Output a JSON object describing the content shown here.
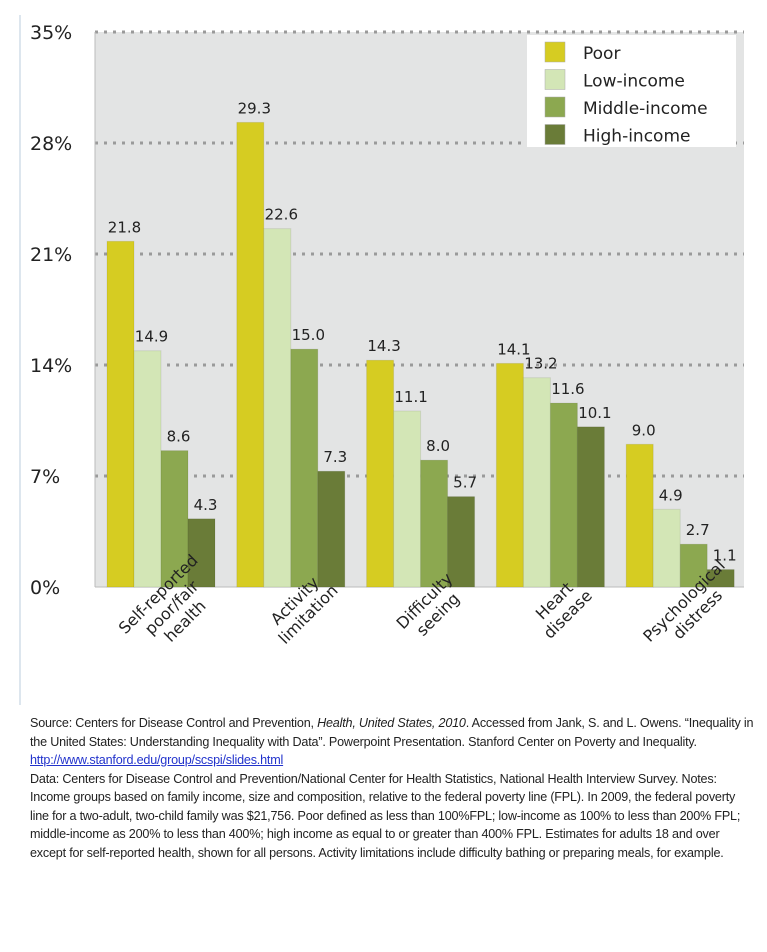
{
  "chart_data": {
    "type": "bar",
    "categories": [
      [
        "Self-reported",
        "poor/fair",
        "health"
      ],
      [
        "Activity",
        "limitation"
      ],
      [
        "Difficulty",
        "seeing"
      ],
      [
        "Heart",
        "disease"
      ],
      [
        "Psychological",
        "distress"
      ]
    ],
    "series": [
      {
        "name": "Poor",
        "color": "#d6cc22",
        "values": [
          21.8,
          29.3,
          14.3,
          14.1,
          9.0
        ],
        "labels": [
          "21.8",
          "29.3",
          "14.3",
          "14.1",
          "9.0"
        ]
      },
      {
        "name": "Low-income",
        "color": "#d3e6b6",
        "values": [
          14.9,
          22.6,
          11.1,
          13.2,
          4.9
        ],
        "labels": [
          "14.9",
          "22.6",
          "11.1",
          "13.2",
          "4.9"
        ]
      },
      {
        "name": "Middle-income",
        "color": "#8ca850",
        "values": [
          8.6,
          15.0,
          8.0,
          11.6,
          2.7
        ],
        "labels": [
          "8.6",
          "15.0",
          "8.0",
          "11.6",
          "2.7"
        ]
      },
      {
        "name": "High-income",
        "color": "#6a7c38",
        "values": [
          4.3,
          7.3,
          5.7,
          10.1,
          1.1
        ],
        "labels": [
          "4.3",
          "7.3",
          "5.7",
          "10.1",
          "1.1"
        ]
      }
    ],
    "yticks": [
      "0%",
      "7%",
      "14%",
      "21%",
      "28%",
      "35%"
    ],
    "ylim": [
      0,
      35
    ],
    "grid": true,
    "legend": "top-right",
    "plot_background": "#e3e4e4"
  },
  "notes": {
    "source_prefix": "Source: Centers for Disease Control and Prevention, ",
    "source_italic": "Health, United States, 2010",
    "source_rest": ".  Accessed from Jank, S. and L. Owens. “Inequality in the United States: Understanding Inequality with Data”. Powerpoint Presentation. Stanford Center on Poverty and Inequality.",
    "link": "http://www.stanford.edu/group/scspi/slides.html",
    "data_note": "Data: Centers for Disease Control and Prevention/National Center for Health Statistics, National Health Interview Survey. Notes: Income groups based on family income, size and composition, relative to the federal poverty line (FPL). In 2009, the federal poverty line for a two-adult, two-child family was $21,756. Poor defined as less than 100%FPL; low-income as 100% to less than 200% FPL; middle-income as 200% to less than 400%; high income as equal to or greater than 400% FPL. Estimates for adults 18 and over except for self-reported health, shown for all persons. Activity limitations include difficulty bathing or preparing meals, for example."
  }
}
